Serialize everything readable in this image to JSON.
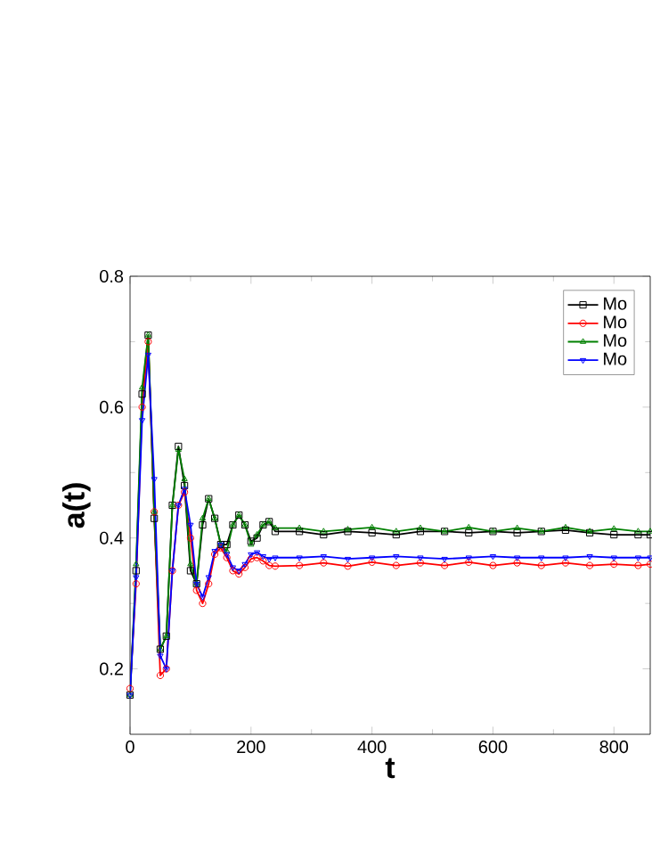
{
  "chart_data": {
    "type": "line",
    "xlabel": "t",
    "ylabel": "a(t)",
    "xlim": [
      0,
      860
    ],
    "ylim": [
      0.1,
      0.8
    ],
    "xticks": [
      0,
      200,
      400,
      600,
      800
    ],
    "yticks": [
      0.2,
      0.4,
      0.6,
      0.8
    ],
    "grid": false,
    "legend": "top right",
    "line_style": "solid",
    "x": [
      0,
      10,
      20,
      30,
      40,
      50,
      60,
      70,
      80,
      90,
      100,
      110,
      120,
      130,
      140,
      150,
      160,
      170,
      180,
      190,
      200,
      210,
      220,
      230,
      240,
      280,
      320,
      360,
      400,
      440,
      480,
      520,
      560,
      600,
      640,
      680,
      720,
      760,
      800,
      840,
      860
    ],
    "series": [
      {
        "name": "Mo",
        "color": "#000000",
        "marker": "square",
        "values": [
          0.16,
          0.35,
          0.62,
          0.71,
          0.43,
          0.23,
          0.25,
          0.45,
          0.54,
          0.48,
          0.35,
          0.33,
          0.42,
          0.46,
          0.43,
          0.39,
          0.39,
          0.42,
          0.435,
          0.42,
          0.395,
          0.4,
          0.42,
          0.425,
          0.41,
          0.41,
          0.405,
          0.41,
          0.408,
          0.405,
          0.41,
          0.41,
          0.408,
          0.41,
          0.408,
          0.41,
          0.412,
          0.408,
          0.405,
          0.405,
          0.405
        ]
      },
      {
        "name": "Mo",
        "color": "#ff0000",
        "marker": "circle",
        "values": [
          0.17,
          0.33,
          0.6,
          0.7,
          0.44,
          0.19,
          0.2,
          0.35,
          0.45,
          0.47,
          0.4,
          0.32,
          0.3,
          0.33,
          0.375,
          0.385,
          0.37,
          0.35,
          0.345,
          0.355,
          0.368,
          0.37,
          0.365,
          0.358,
          0.357,
          0.358,
          0.362,
          0.357,
          0.363,
          0.358,
          0.362,
          0.358,
          0.363,
          0.358,
          0.362,
          0.358,
          0.362,
          0.358,
          0.36,
          0.358,
          0.36
        ]
      },
      {
        "name": "Mo",
        "color": "#008000",
        "marker": "triangle",
        "values": [
          0.16,
          0.36,
          0.63,
          0.71,
          0.44,
          0.23,
          0.25,
          0.45,
          0.535,
          0.49,
          0.36,
          0.33,
          0.43,
          0.46,
          0.43,
          0.39,
          0.38,
          0.42,
          0.435,
          0.42,
          0.39,
          0.405,
          0.42,
          0.425,
          0.415,
          0.415,
          0.41,
          0.413,
          0.416,
          0.41,
          0.415,
          0.41,
          0.416,
          0.41,
          0.415,
          0.41,
          0.416,
          0.41,
          0.414,
          0.41,
          0.41
        ]
      },
      {
        "name": "Mo",
        "color": "#0000ff",
        "marker": "triangle",
        "values": [
          0.16,
          0.34,
          0.58,
          0.68,
          0.49,
          0.22,
          0.2,
          0.35,
          0.45,
          0.475,
          0.42,
          0.33,
          0.31,
          0.34,
          0.38,
          0.39,
          0.375,
          0.355,
          0.35,
          0.36,
          0.375,
          0.378,
          0.372,
          0.368,
          0.37,
          0.37,
          0.372,
          0.368,
          0.37,
          0.372,
          0.37,
          0.368,
          0.37,
          0.372,
          0.37,
          0.37,
          0.37,
          0.372,
          0.37,
          0.37,
          0.37
        ]
      }
    ]
  }
}
